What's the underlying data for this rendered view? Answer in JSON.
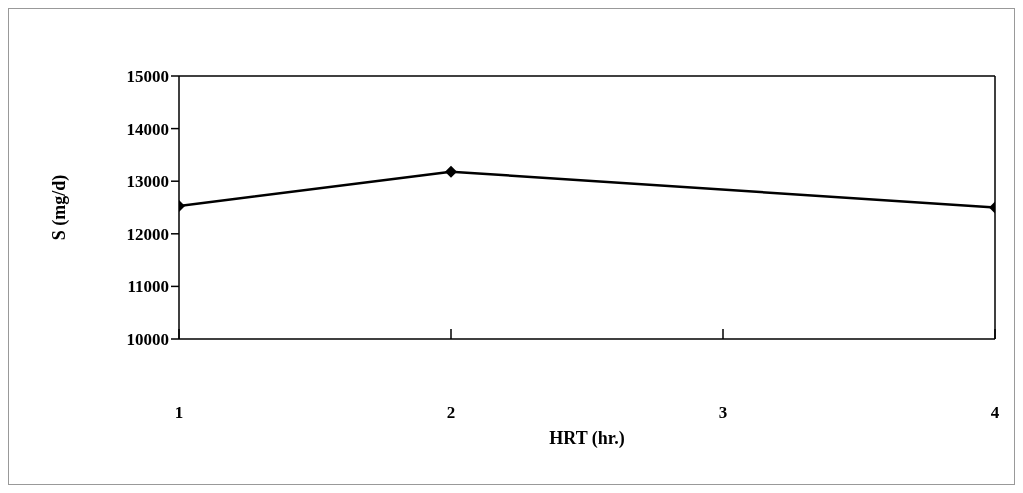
{
  "chart_data": {
    "type": "line",
    "xlabel": "HRT (hr.)",
    "ylabel": "S (mg/d)",
    "x": [
      1,
      2,
      4
    ],
    "series": [
      {
        "color": "#000000",
        "values": [
          12530,
          13180,
          12500
        ]
      }
    ],
    "xlim": [
      1,
      4
    ],
    "xticks": [
      1,
      2,
      3,
      4
    ],
    "ylim": [
      10000,
      15000
    ],
    "yticks": [
      10000,
      11000,
      12000,
      13000,
      14000,
      15000
    ],
    "grid": false,
    "legend": false,
    "marker": "diamond",
    "line_style": "solid"
  }
}
